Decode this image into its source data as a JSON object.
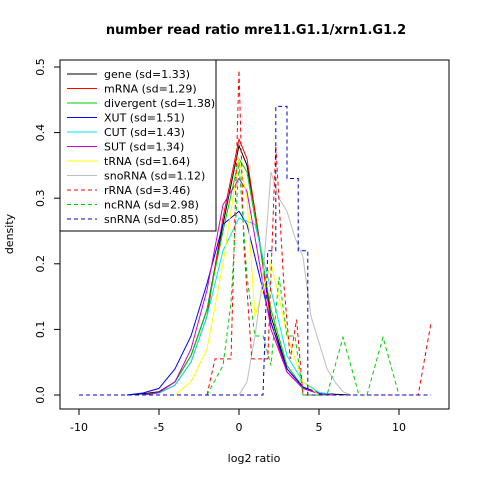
{
  "chart_data": {
    "type": "line",
    "title": "number read ratio mre11.G1.1/xrn1.G1.2",
    "xlabel": "log2 ratio",
    "ylabel": "density",
    "xlim": [
      -10,
      12.5
    ],
    "ylim": [
      0,
      0.51
    ],
    "xticks": [
      -10,
      -5,
      0,
      5,
      10
    ],
    "yticks": [
      0.0,
      0.1,
      0.2,
      0.3,
      0.4,
      0.5
    ],
    "legend_position": "top-left",
    "grid": false,
    "series": [
      {
        "name": "gene (sd=1.33)",
        "color": "#000000",
        "dash": false,
        "points": [
          [
            -7,
            0.0
          ],
          [
            -6,
            0.002
          ],
          [
            -5,
            0.005
          ],
          [
            -4,
            0.02
          ],
          [
            -3,
            0.06
          ],
          [
            -2,
            0.13
          ],
          [
            -1,
            0.26
          ],
          [
            0,
            0.38
          ],
          [
            0.5,
            0.35
          ],
          [
            1,
            0.28
          ],
          [
            2,
            0.12
          ],
          [
            3,
            0.04
          ],
          [
            4,
            0.012
          ],
          [
            5,
            0.003
          ],
          [
            6,
            0.001
          ],
          [
            7,
            0.0
          ]
        ]
      },
      {
        "name": "mRNA (sd=1.29)",
        "color": "#ff0000",
        "dash": false,
        "points": [
          [
            -6,
            0.0
          ],
          [
            -5,
            0.003
          ],
          [
            -4,
            0.015
          ],
          [
            -3,
            0.05
          ],
          [
            -2,
            0.12
          ],
          [
            -1,
            0.27
          ],
          [
            0,
            0.39
          ],
          [
            0.5,
            0.36
          ],
          [
            1,
            0.28
          ],
          [
            2,
            0.11
          ],
          [
            3,
            0.035
          ],
          [
            4,
            0.01
          ],
          [
            5,
            0.002
          ],
          [
            6,
            0.0
          ]
        ]
      },
      {
        "name": "divergent (sd=1.38)",
        "color": "#00cd00",
        "dash": false,
        "points": [
          [
            -6,
            0.0
          ],
          [
            -5,
            0.004
          ],
          [
            -4,
            0.02
          ],
          [
            -3,
            0.06
          ],
          [
            -2,
            0.13
          ],
          [
            -1,
            0.25
          ],
          [
            0,
            0.36
          ],
          [
            0.5,
            0.34
          ],
          [
            1,
            0.27
          ],
          [
            2,
            0.13
          ],
          [
            3,
            0.045
          ],
          [
            4,
            0.012
          ],
          [
            5,
            0.002
          ],
          [
            6,
            0.0
          ]
        ]
      },
      {
        "name": "XUT (sd=1.51)",
        "color": "#0000ff",
        "dash": false,
        "points": [
          [
            -7,
            0.0
          ],
          [
            -6,
            0.003
          ],
          [
            -5,
            0.01
          ],
          [
            -4,
            0.04
          ],
          [
            -3,
            0.09
          ],
          [
            -2,
            0.17
          ],
          [
            -1,
            0.26
          ],
          [
            0,
            0.28
          ],
          [
            0.5,
            0.26
          ],
          [
            1,
            0.21
          ],
          [
            2,
            0.11
          ],
          [
            3,
            0.04
          ],
          [
            4,
            0.012
          ],
          [
            5,
            0.003
          ],
          [
            6,
            0.0
          ]
        ]
      },
      {
        "name": "CUT (sd=1.43)",
        "color": "#00e5ee",
        "dash": false,
        "points": [
          [
            -6,
            0.0
          ],
          [
            -5,
            0.003
          ],
          [
            -4,
            0.015
          ],
          [
            -3,
            0.05
          ],
          [
            -2,
            0.12
          ],
          [
            -1,
            0.22
          ],
          [
            0,
            0.27
          ],
          [
            1,
            0.26
          ],
          [
            2,
            0.16
          ],
          [
            3,
            0.06
          ],
          [
            4,
            0.02
          ],
          [
            5,
            0.004
          ],
          [
            6,
            0.0
          ]
        ]
      },
      {
        "name": "SUT (sd=1.34)",
        "color": "#cd00cd",
        "dash": false,
        "points": [
          [
            -6,
            0.0
          ],
          [
            -5,
            0.004
          ],
          [
            -4,
            0.02
          ],
          [
            -3,
            0.07
          ],
          [
            -2,
            0.16
          ],
          [
            -1,
            0.29
          ],
          [
            0,
            0.33
          ],
          [
            0.5,
            0.31
          ],
          [
            1,
            0.24
          ],
          [
            2,
            0.1
          ],
          [
            3,
            0.035
          ],
          [
            4,
            0.01
          ],
          [
            5,
            0.002
          ],
          [
            6,
            0.0
          ]
        ]
      },
      {
        "name": "tRNA (sd=1.64)",
        "color": "#ffff00",
        "dash": false,
        "points": [
          [
            -4,
            0.0
          ],
          [
            -3,
            0.02
          ],
          [
            -2,
            0.07
          ],
          [
            -1,
            0.2
          ],
          [
            0,
            0.36
          ],
          [
            0.5,
            0.3
          ],
          [
            1,
            0.12
          ],
          [
            1.5,
            0.16
          ],
          [
            2,
            0.2
          ],
          [
            2.5,
            0.15
          ],
          [
            3,
            0.09
          ],
          [
            4,
            0.02
          ],
          [
            5,
            0.0
          ]
        ]
      },
      {
        "name": "snoRNA (sd=1.12)",
        "color": "#bebebe",
        "dash": false,
        "points": [
          [
            0,
            0.0
          ],
          [
            0.5,
            0.02
          ],
          [
            1,
            0.09
          ],
          [
            1.5,
            0.18
          ],
          [
            2,
            0.34
          ],
          [
            2.5,
            0.3
          ],
          [
            3,
            0.28
          ],
          [
            3.5,
            0.24
          ],
          [
            4,
            0.21
          ],
          [
            4.5,
            0.12
          ],
          [
            5,
            0.08
          ],
          [
            5.5,
            0.04
          ],
          [
            6,
            0.02
          ],
          [
            6.5,
            0.005
          ],
          [
            7,
            0.0
          ]
        ]
      },
      {
        "name": "rRNA (sd=3.46)",
        "color": "#ff0000",
        "dash": true,
        "points": [
          [
            -2,
            0.0
          ],
          [
            -1.5,
            0.055
          ],
          [
            -0.5,
            0.055
          ],
          [
            -0.3,
            0.23
          ],
          [
            0,
            0.495
          ],
          [
            0.3,
            0.23
          ],
          [
            0.8,
            0.055
          ],
          [
            1.8,
            0.055
          ],
          [
            2.3,
            0.38
          ],
          [
            2.8,
            0.17
          ],
          [
            3.2,
            0.055
          ],
          [
            3.6,
            0.115
          ],
          [
            4,
            0.0
          ],
          [
            10.5,
            0.0
          ],
          [
            11.2,
            0.0
          ],
          [
            12,
            0.11
          ]
        ]
      },
      {
        "name": "ncRNA (sd=2.98)",
        "color": "#00cd00",
        "dash": true,
        "points": [
          [
            -2,
            0.0
          ],
          [
            -1,
            0.045
          ],
          [
            -0.5,
            0.14
          ],
          [
            0,
            0.355
          ],
          [
            0.5,
            0.18
          ],
          [
            1,
            0.09
          ],
          [
            1.5,
            0.09
          ],
          [
            2,
            0.045
          ],
          [
            2.5,
            0.18
          ],
          [
            3,
            0.09
          ],
          [
            3.5,
            0.09
          ],
          [
            4,
            0.0
          ],
          [
            5.5,
            0.0
          ],
          [
            6.5,
            0.088
          ],
          [
            7.5,
            0.0
          ],
          [
            8,
            0.0
          ],
          [
            9,
            0.088
          ],
          [
            10,
            0.0
          ]
        ]
      },
      {
        "name": "snRNA (sd=0.85)",
        "color": "#0000cd",
        "dash": true,
        "points": [
          [
            -10,
            0.0
          ],
          [
            1.5,
            0.0
          ],
          [
            1.8,
            0.22
          ],
          [
            2.3,
            0.22
          ],
          [
            2.3,
            0.44
          ],
          [
            3,
            0.44
          ],
          [
            3,
            0.33
          ],
          [
            3.7,
            0.33
          ],
          [
            3.7,
            0.22
          ],
          [
            4.3,
            0.22
          ],
          [
            4.3,
            0.0
          ],
          [
            12,
            0.0
          ]
        ]
      }
    ]
  }
}
